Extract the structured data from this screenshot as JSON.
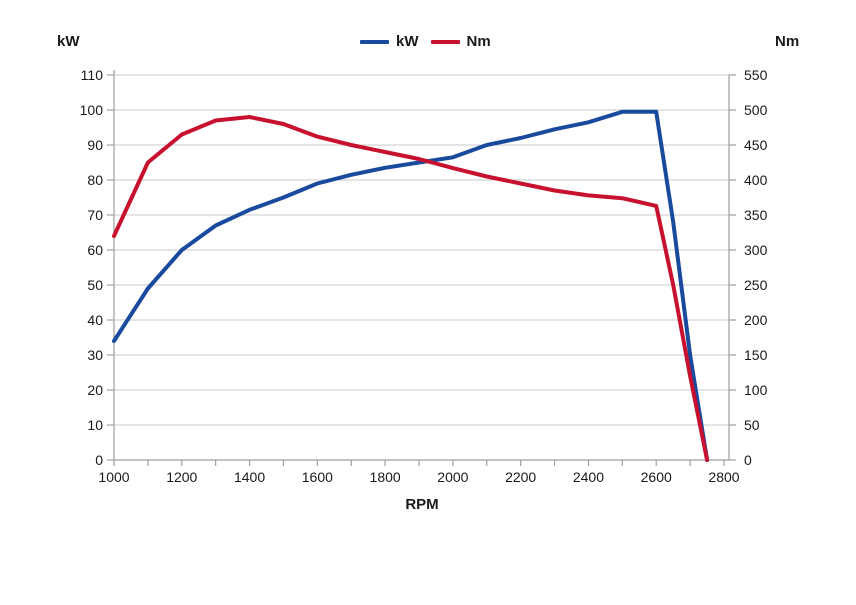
{
  "page": {
    "background": "#ffffff"
  },
  "legend": {
    "items": [
      {
        "label": "kW",
        "color": "#1a4a9e"
      },
      {
        "label": "Nm",
        "color": "#c8112f"
      }
    ]
  },
  "chart_data": {
    "type": "line",
    "title": "",
    "xlabel": "RPM",
    "x": [
      1000,
      1100,
      1200,
      1300,
      1400,
      1500,
      1600,
      1700,
      1800,
      1900,
      2000,
      2100,
      2200,
      2300,
      2400,
      2500,
      2600,
      2650,
      2700,
      2750
    ],
    "series": [
      {
        "name": "kW",
        "axis": "left",
        "color": "#1a4a9e",
        "values": [
          34,
          49,
          60,
          67,
          71.5,
          75,
          79,
          81.5,
          83.5,
          85,
          86.5,
          90,
          92,
          94.5,
          96.5,
          99.5,
          99.5,
          68,
          30,
          0
        ]
      },
      {
        "name": "Nm",
        "axis": "right",
        "color": "#c8112f",
        "values": [
          320,
          425,
          465,
          485,
          490,
          480,
          462,
          450,
          440,
          430,
          417,
          405,
          395,
          385,
          378,
          374,
          363,
          250,
          120,
          0
        ]
      }
    ],
    "left_axis": {
      "title": "kW",
      "min": 0,
      "max": 110,
      "step": 10
    },
    "right_axis": {
      "title": "Nm",
      "min": 0,
      "max": 550,
      "step": 50
    },
    "x_axis": {
      "min": 1000,
      "max": 2800,
      "tick_step": 100,
      "label_step": 200
    },
    "grid": true,
    "legend_position": "top-center",
    "colors": {
      "grid": "#c9c9c9",
      "axis": "#9e9e9e",
      "text": "#1a1a1a"
    }
  }
}
